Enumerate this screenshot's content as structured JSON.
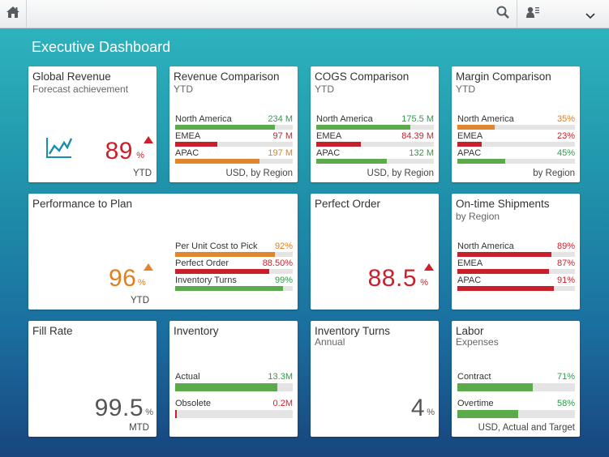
{
  "colors": {
    "green": "#5bab4d",
    "red": "#c8202a",
    "orange": "#e0862e",
    "green_text": "#2b9c48",
    "red_text": "#cc1f2b",
    "orange_text": "#e17f1b"
  },
  "shell": {
    "home_icon": "home-icon",
    "search_icon": "search-icon",
    "user_icon": "user-icon",
    "menu_icon": "chevron-down-icon"
  },
  "page": {
    "title": "Executive Dashboard"
  },
  "tiles": {
    "global_revenue": {
      "title": "Global Revenue",
      "subtitle": "Forecast achievement",
      "icon": "line-chart-icon",
      "value": "89",
      "unit": "%",
      "trend": "up",
      "footer": "YTD"
    },
    "revenue_comparison": {
      "title": "Revenue Comparison",
      "subtitle": "YTD",
      "footer": "USD, by Region",
      "rows": [
        {
          "label": "North America",
          "value": "234 M",
          "fraction": 0.85,
          "color": "green"
        },
        {
          "label": "EMEA",
          "value": "97 M",
          "fraction": 0.36,
          "color": "red"
        },
        {
          "label": "APAC",
          "value": "197 M",
          "fraction": 0.72,
          "color": "orange"
        }
      ]
    },
    "cogs_comparison": {
      "title": "COGS Comparison",
      "subtitle": "YTD",
      "footer": "USD, by Region",
      "rows": [
        {
          "label": "North America",
          "value": "175.5 M",
          "fraction": 0.8,
          "color": "green"
        },
        {
          "label": "EMEA",
          "value": "84.39 M",
          "fraction": 0.38,
          "color": "red"
        },
        {
          "label": "APAC",
          "value": "132 M",
          "fraction": 0.6,
          "color": "green"
        }
      ]
    },
    "margin_comparison": {
      "title": "Margin Comparison",
      "subtitle": "YTD",
      "footer": "by Region",
      "rows": [
        {
          "label": "North America",
          "value": "35%",
          "fraction": 0.32,
          "color": "orange"
        },
        {
          "label": "EMEA",
          "value": "23%",
          "fraction": 0.21,
          "color": "red"
        },
        {
          "label": "APAC",
          "value": "45%",
          "fraction": 0.41,
          "color": "green"
        }
      ]
    },
    "performance_to_plan": {
      "title": "Performance to Plan",
      "value": "96",
      "unit": "%",
      "trend": "up",
      "footer": "YTD",
      "rows": [
        {
          "label": "Per Unit Cost to Pick",
          "value": "92%",
          "fraction": 0.85,
          "color": "orange"
        },
        {
          "label": "Perfect Order",
          "value": "88.50%",
          "fraction": 0.8,
          "color": "red"
        },
        {
          "label": "Inventory Turns",
          "value": "99%",
          "fraction": 0.92,
          "color": "green"
        }
      ]
    },
    "perfect_order": {
      "title": "Perfect Order",
      "value": "88.5",
      "unit": "%",
      "trend": "up"
    },
    "ontime_shipments": {
      "title": "On-time Shipments",
      "subtitle": "by Region",
      "rows": [
        {
          "label": "North America",
          "value": "89%",
          "fraction": 0.8,
          "color": "red"
        },
        {
          "label": "EMEA",
          "value": "87%",
          "fraction": 0.78,
          "color": "red"
        },
        {
          "label": "APAC",
          "value": "91%",
          "fraction": 0.82,
          "color": "red"
        }
      ]
    },
    "fill_rate": {
      "title": "Fill Rate",
      "value": "99.5",
      "unit": "%",
      "footer": "MTD"
    },
    "inventory": {
      "title": "Inventory",
      "rows": [
        {
          "label": "Actual",
          "value": "13.3M",
          "fraction": 0.87,
          "color": "green"
        },
        {
          "label": "Obsolete",
          "value": "0.2M",
          "fraction": 0.015,
          "color": "red"
        }
      ]
    },
    "inventory_turns": {
      "title": "Inventory Turns",
      "subtitle": "Annual",
      "value": "4",
      "unit": "%"
    },
    "labor": {
      "title": "Labor",
      "subtitle": "Expenses",
      "footer": "USD, Actual and Target",
      "rows": [
        {
          "label": "Contract",
          "value": "71%",
          "fraction": 0.64,
          "color": "green"
        },
        {
          "label": "Overtime",
          "value": "58%",
          "fraction": 0.52,
          "color": "green"
        }
      ]
    }
  }
}
